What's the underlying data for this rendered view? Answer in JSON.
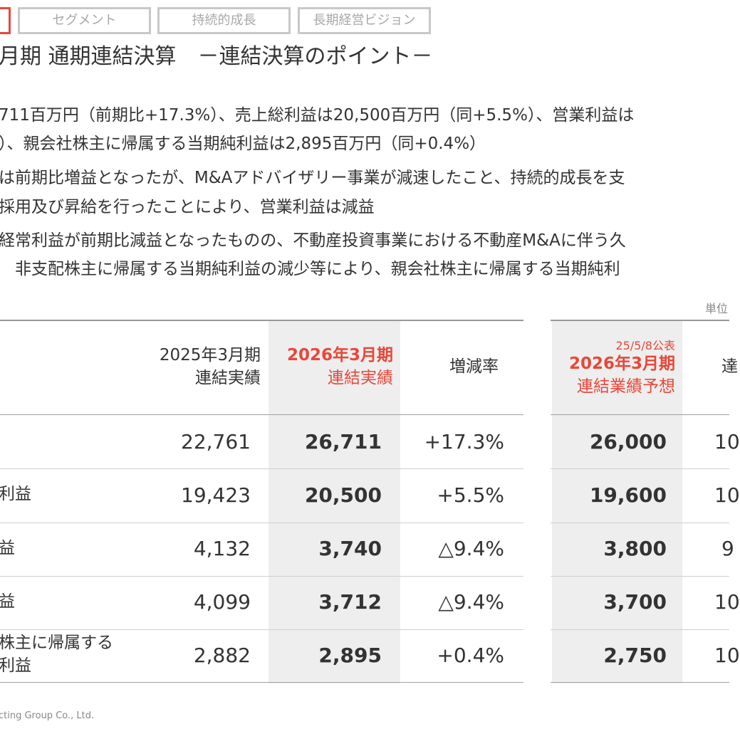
{
  "nav": {
    "tabs": [
      "",
      "セグメント",
      "持続的成長",
      "長期経営ビジョン"
    ]
  },
  "title": "月期 通期連結決算　－連結決算のポイント－",
  "points": [
    "711百万円（前期比+17.3%）、売上総利益は20,500百万円（同+5.5%）、営業利益は",
    "）、親会社株主に帰属する当期純利益は2,895百万円（同+0.4%）",
    "は前期比増益となったが、M&Aアドバイザリー事業が減速したこと、持続的成長を支",
    "採用及び昇給を行ったことにより、営業利益は減益",
    "経常利益が前期比減益となったものの、不動産投資事業における不動産M&Aに伴う久",
    "　非支配株主に帰属する当期純利益の減少等により、親会社株主に帰属する当期純利"
  ],
  "unit_label": "単位",
  "table": {
    "col_prev": [
      "2025年3月期",
      "連結実績"
    ],
    "col_curr": [
      "2026年3月期",
      "連結実績"
    ],
    "col_change": "増減率",
    "forecast_note": "25/5/8公表",
    "col_forecast": [
      "2026年3月期",
      "連結業績予想"
    ],
    "col_last": "達",
    "rows": [
      {
        "label": [
          "",
          ""
        ],
        "prev": "22,761",
        "curr": "26,711",
        "change": "+17.3%",
        "forecast": "26,000",
        "last": "10"
      },
      {
        "label": [
          "利益",
          ""
        ],
        "prev": "19,423",
        "curr": "20,500",
        "change": "+5.5%",
        "forecast": "19,600",
        "last": "10"
      },
      {
        "label": [
          "益",
          ""
        ],
        "prev": "4,132",
        "curr": "3,740",
        "change": "△9.4%",
        "forecast": "3,800",
        "last": "9"
      },
      {
        "label": [
          "益",
          ""
        ],
        "prev": "4,099",
        "curr": "3,712",
        "change": "△9.4%",
        "forecast": "3,700",
        "last": "10"
      },
      {
        "label": [
          "株主に帰属する",
          "利益"
        ],
        "prev": "2,882",
        "curr": "2,895",
        "change": "+0.4%",
        "forecast": "2,750",
        "last": "10"
      }
    ]
  },
  "footer": "cting Group Co., Ltd."
}
